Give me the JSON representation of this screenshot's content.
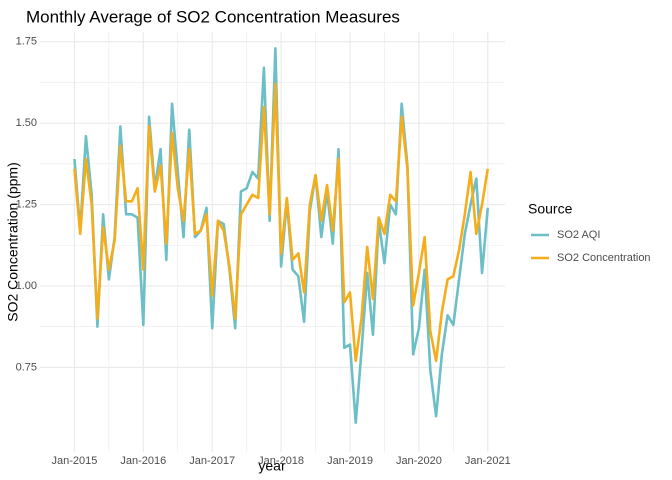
{
  "chart_data": {
    "type": "line",
    "title": "Monthly Average of SO2 Concentration Measures",
    "xlabel": "year",
    "ylabel": "SO2 Concentration (ppm)",
    "legend_title": "Source",
    "legend": "right",
    "grid": true,
    "x": [
      "2015-01",
      "2015-02",
      "2015-03",
      "2015-04",
      "2015-05",
      "2015-06",
      "2015-07",
      "2015-08",
      "2015-09",
      "2015-10",
      "2015-11",
      "2015-12",
      "2016-01",
      "2016-02",
      "2016-03",
      "2016-04",
      "2016-05",
      "2016-06",
      "2016-07",
      "2016-08",
      "2016-09",
      "2016-10",
      "2016-11",
      "2016-12",
      "2017-01",
      "2017-02",
      "2017-03",
      "2017-04",
      "2017-05",
      "2017-06",
      "2017-07",
      "2017-08",
      "2017-09",
      "2017-10",
      "2017-11",
      "2017-12",
      "2018-01",
      "2018-02",
      "2018-03",
      "2018-04",
      "2018-05",
      "2018-06",
      "2018-07",
      "2018-08",
      "2018-09",
      "2018-10",
      "2018-11",
      "2018-12",
      "2019-01",
      "2019-02",
      "2019-03",
      "2019-04",
      "2019-05",
      "2019-06",
      "2019-07",
      "2019-08",
      "2019-09",
      "2019-10",
      "2019-11",
      "2019-12",
      "2020-01",
      "2020-02",
      "2020-03",
      "2020-04",
      "2020-05",
      "2020-06",
      "2020-07",
      "2020-08",
      "2020-09",
      "2020-10",
      "2020-11",
      "2020-12",
      "2021-01"
    ],
    "xlim": [
      "2014-07",
      "2021-04"
    ],
    "xticks": [
      {
        "value": "2015-01",
        "label": "Jan-2015"
      },
      {
        "value": "2016-01",
        "label": "Jan-2016"
      },
      {
        "value": "2017-01",
        "label": "Jan-2017"
      },
      {
        "value": "2018-01",
        "label": "Jan-2018"
      },
      {
        "value": "2019-01",
        "label": "Jan-2019"
      },
      {
        "value": "2020-01",
        "label": "Jan-2020"
      },
      {
        "value": "2021-01",
        "label": "Jan-2021"
      }
    ],
    "ylim": [
      0.49,
      1.78
    ],
    "yticks": [
      0.75,
      {
        "value": 1.0,
        "label": "1.00"
      },
      1.25,
      {
        "value": 1.5,
        "label": "1.50"
      },
      1.75
    ],
    "series": [
      {
        "name": "SO2 AQI",
        "color": "#6cbfc6",
        "values": [
          1.39,
          1.17,
          1.46,
          1.28,
          0.875,
          1.22,
          1.02,
          1.15,
          1.49,
          1.22,
          1.22,
          1.21,
          0.88,
          1.52,
          1.3,
          1.42,
          1.08,
          1.56,
          1.35,
          1.15,
          1.48,
          1.15,
          1.17,
          1.24,
          0.87,
          1.2,
          1.19,
          1.05,
          0.87,
          1.29,
          1.3,
          1.35,
          1.33,
          1.67,
          1.2,
          1.73,
          1.06,
          1.26,
          1.05,
          1.03,
          0.89,
          1.23,
          1.34,
          1.15,
          1.29,
          1.13,
          1.42,
          0.81,
          0.82,
          0.58,
          0.8,
          1.04,
          0.85,
          1.2,
          1.07,
          1.25,
          1.22,
          1.56,
          1.37,
          0.79,
          0.87,
          1.05,
          0.74,
          0.6,
          0.79,
          0.91,
          0.88,
          1.02,
          1.16,
          1.25,
          1.33,
          1.04,
          1.24
        ]
      },
      {
        "name": "SO2 Concentration",
        "color": "#f5ad1c",
        "values": [
          1.36,
          1.16,
          1.39,
          1.25,
          0.9,
          1.18,
          1.05,
          1.14,
          1.43,
          1.26,
          1.26,
          1.3,
          1.05,
          1.49,
          1.29,
          1.37,
          1.13,
          1.47,
          1.3,
          1.2,
          1.42,
          1.16,
          1.17,
          1.22,
          0.97,
          1.2,
          1.17,
          1.06,
          0.9,
          1.22,
          1.25,
          1.28,
          1.27,
          1.55,
          1.22,
          1.62,
          1.1,
          1.27,
          1.08,
          1.1,
          0.98,
          1.25,
          1.34,
          1.2,
          1.31,
          1.17,
          1.39,
          0.95,
          0.98,
          0.77,
          0.9,
          1.12,
          0.96,
          1.21,
          1.16,
          1.28,
          1.26,
          1.52,
          1.36,
          0.94,
          1.04,
          1.15,
          0.86,
          0.77,
          0.92,
          1.02,
          1.03,
          1.11,
          1.22,
          1.35,
          1.16,
          1.25,
          1.36
        ]
      }
    ]
  }
}
